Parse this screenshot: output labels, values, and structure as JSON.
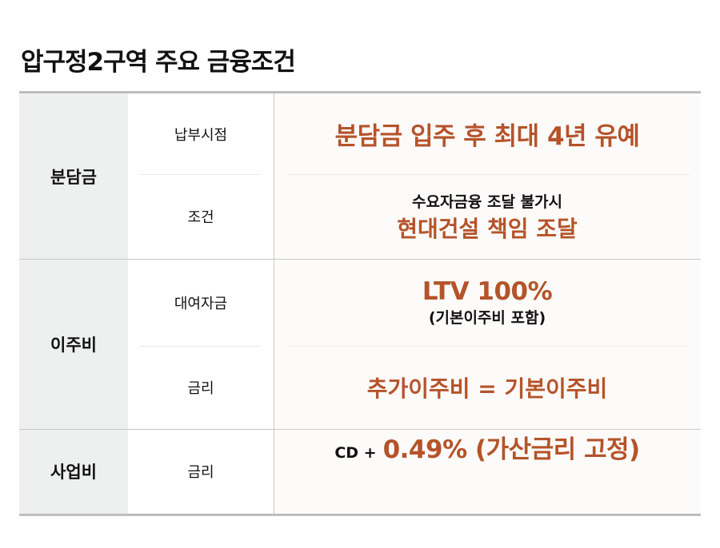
{
  "title": "압구정2구역 주요 금융조건",
  "colors": {
    "accent": "#b5532a",
    "group_bg": "#eef0f0"
  },
  "rows": [
    {
      "group": "분담금",
      "items": [
        {
          "label": "납부시점",
          "value": "분담금 입주 후 최대 4년 유예"
        },
        {
          "label": "조건",
          "note": "수요자금융 조달 불가시",
          "value": "현대건설 책임 조달"
        }
      ]
    },
    {
      "group": "이주비",
      "items": [
        {
          "label": "대여자금",
          "value": "LTV 100%",
          "note": "(기본이주비 포함)"
        },
        {
          "label": "금리",
          "value": "추가이주비 = 기본이주비"
        }
      ]
    },
    {
      "group": "사업비",
      "items": [
        {
          "label": "금리",
          "prefix": "CD +",
          "value": "0.49% (가산금리 고정)"
        }
      ]
    }
  ]
}
